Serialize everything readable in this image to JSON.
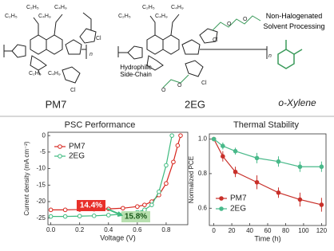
{
  "structures": {
    "pm7": {
      "name": "PM7",
      "labels": [
        "C₂H₅",
        "C₄H₉",
        "C₄H₉",
        "C₂H₅",
        "Cl",
        "C₂H₅",
        "C₄H₉",
        "Cl",
        "n"
      ]
    },
    "2eg": {
      "name": "2EG",
      "labels": [
        "C₂H₅",
        "C₄H₉",
        "C₄H₉",
        "C₂H₅",
        "Cl",
        "O",
        "O",
        "O",
        "O",
        "Cl",
        "n"
      ],
      "note": "Hydrophilic Side-Chain"
    },
    "solvent": {
      "name": "o-Xylene",
      "note": "Non-Halogenated Solvent Processing"
    }
  },
  "chart_data": [
    {
      "type": "line",
      "title": "PSC Performance",
      "xlabel": "Voltage (V)",
      "ylabel": "Current density (mA cm⁻²)",
      "xlim": [
        -0.02,
        0.95
      ],
      "ylim": [
        -27,
        1
      ],
      "xticks": [
        {
          "value": 0,
          "label": "0.0"
        },
        0.2,
        0.4,
        0.6,
        0.8
      ],
      "yticks": [
        0,
        -5,
        -10,
        -15,
        -20,
        -25
      ],
      "legend": "upper-left",
      "series": [
        {
          "name": "PM7",
          "color": "#d7261e",
          "marker": "open",
          "x": [
            0,
            0.1,
            0.2,
            0.3,
            0.4,
            0.5,
            0.6,
            0.65,
            0.7,
            0.75,
            0.8,
            0.85,
            0.88,
            0.9
          ],
          "values": [
            -22.5,
            -22.5,
            -22.4,
            -22.3,
            -22.2,
            -22,
            -21.5,
            -21,
            -20,
            -18,
            -14.5,
            -8,
            -3,
            0
          ]
        },
        {
          "name": "2EG",
          "color": "#3dba7e",
          "marker": "open",
          "x": [
            0,
            0.1,
            0.2,
            0.3,
            0.4,
            0.5,
            0.6,
            0.65,
            0.7,
            0.75,
            0.8,
            0.84
          ],
          "values": [
            -24.5,
            -24.5,
            -24.4,
            -24.3,
            -24.1,
            -23.8,
            -23.2,
            -22.5,
            -21,
            -17,
            -9,
            0
          ]
        }
      ],
      "annotations": [
        {
          "text": "14.4%",
          "color": "#e8302a"
        },
        {
          "text": "15.8%",
          "color": "#b8e0b0"
        }
      ]
    },
    {
      "type": "line",
      "title": "Thermal Stability",
      "xlabel": "Time (h)",
      "ylabel": "Normalized PCE",
      "xlim": [
        -5,
        125
      ],
      "ylim": [
        0.5,
        1.03
      ],
      "xticks": [
        0,
        20,
        40,
        60,
        80,
        100,
        120
      ],
      "yticks": [
        {
          "value": 0.6,
          "label": "0.6"
        },
        {
          "value": 0.8,
          "label": "0.8"
        },
        {
          "value": 1,
          "label": "1.0"
        }
      ],
      "legend": "lower-left",
      "series": [
        {
          "name": "PM7",
          "color": "#c8302a",
          "marker": "filled",
          "x": [
            0,
            10,
            24,
            48,
            72,
            96,
            120
          ],
          "values": [
            1,
            0.9,
            0.81,
            0.75,
            0.69,
            0.65,
            0.62
          ],
          "errors": [
            0.01,
            0.03,
            0.03,
            0.04,
            0.03,
            0.04,
            0.04
          ]
        },
        {
          "name": "2EG",
          "color": "#49b98a",
          "marker": "filled",
          "x": [
            0,
            10,
            24,
            48,
            72,
            96,
            120
          ],
          "values": [
            1,
            0.96,
            0.93,
            0.89,
            0.87,
            0.84,
            0.84
          ],
          "errors": [
            0.01,
            0.02,
            0.02,
            0.03,
            0.03,
            0.03,
            0.03
          ]
        }
      ]
    }
  ]
}
